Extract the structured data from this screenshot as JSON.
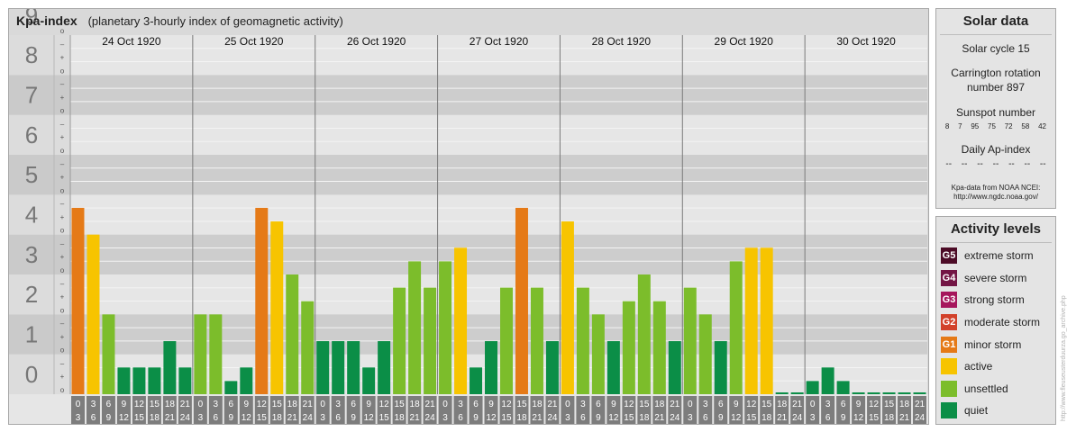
{
  "chart_data": {
    "type": "bar",
    "title": "Kpa-index",
    "subtitle": "(planetary 3-hourly index of geomagnetic activity)",
    "ylim": [
      0,
      9
    ],
    "y_ticks": [
      "0",
      "1",
      "2",
      "3",
      "4",
      "5",
      "6",
      "7",
      "8",
      "9"
    ],
    "y_minor_ticks": [
      "o",
      "+",
      "–"
    ],
    "days": [
      "24 Oct 1920",
      "25 Oct 1920",
      "26 Oct 1920",
      "27 Oct 1920",
      "28 Oct 1920",
      "29 Oct 1920",
      "30 Oct 1920"
    ],
    "interval_start_labels": [
      "0",
      "3",
      "6",
      "9",
      "12",
      "15",
      "18",
      "21"
    ],
    "interval_end_labels": [
      "3",
      "6",
      "9",
      "12",
      "15",
      "18",
      "21",
      "24"
    ],
    "values": [
      [
        4.67,
        4.0,
        2.0,
        0.67,
        0.67,
        0.67,
        1.33,
        0.67
      ],
      [
        2.0,
        2.0,
        0.33,
        0.67,
        4.67,
        4.33,
        3.0,
        2.33
      ],
      [
        1.33,
        1.33,
        1.33,
        0.67,
        1.33,
        2.67,
        3.33,
        2.67
      ],
      [
        3.33,
        3.67,
        0.67,
        1.33,
        2.67,
        4.67,
        2.67,
        1.33
      ],
      [
        4.33,
        2.67,
        2.0,
        1.33,
        2.33,
        3.0,
        2.33,
        1.33
      ],
      [
        2.67,
        2.0,
        1.33,
        3.33,
        3.67,
        3.67,
        0.0,
        0.0
      ],
      [
        0.33,
        0.67,
        0.33,
        0.0,
        0.0,
        0.0,
        0.0,
        0.0
      ]
    ],
    "grid": true,
    "legend_position": "right"
  },
  "colors": {
    "quiet": "#0b8e47",
    "unsettled": "#7cbd2b",
    "active": "#f7c400",
    "minor_storm": "#e57a17",
    "moderate_storm": "#d2412a",
    "strong_storm": "#a6165c",
    "severe_storm": "#731545",
    "extreme_storm": "#4c0b26"
  },
  "solar_data": {
    "heading": "Solar data",
    "solar_cycle": "Solar cycle 15",
    "carrington_line1": "Carrington rotation",
    "carrington_line2": "number 897",
    "sunspot_label": "Sunspot number",
    "sunspot_values": [
      "8",
      "7",
      "95",
      "75",
      "72",
      "58",
      "42"
    ],
    "ap_label": "Daily Ap-index",
    "ap_values": [
      "--",
      "--",
      "--",
      "--",
      "--",
      "--",
      "--"
    ],
    "source_line1": "Kpa-data from NOAA NCEI:",
    "source_line2": "http://www.ngdc.noaa.gov/"
  },
  "activity_levels": {
    "heading": "Activity levels",
    "items": [
      {
        "badge": "G5",
        "label": "extreme storm",
        "color": "#4c0b26"
      },
      {
        "badge": "G4",
        "label": "severe storm",
        "color": "#731545"
      },
      {
        "badge": "G3",
        "label": "strong storm",
        "color": "#a6165c"
      },
      {
        "badge": "G2",
        "label": "moderate storm",
        "color": "#d2412a"
      },
      {
        "badge": "G1",
        "label": "minor storm",
        "color": "#e57a17"
      },
      {
        "badge": "",
        "label": "active",
        "color": "#f7c400"
      },
      {
        "badge": "",
        "label": "unsettled",
        "color": "#7cbd2b"
      },
      {
        "badge": "",
        "label": "quiet",
        "color": "#0b8e47"
      }
    ]
  },
  "credit": "http://www.fleuseusterduurza.go_archive.php"
}
